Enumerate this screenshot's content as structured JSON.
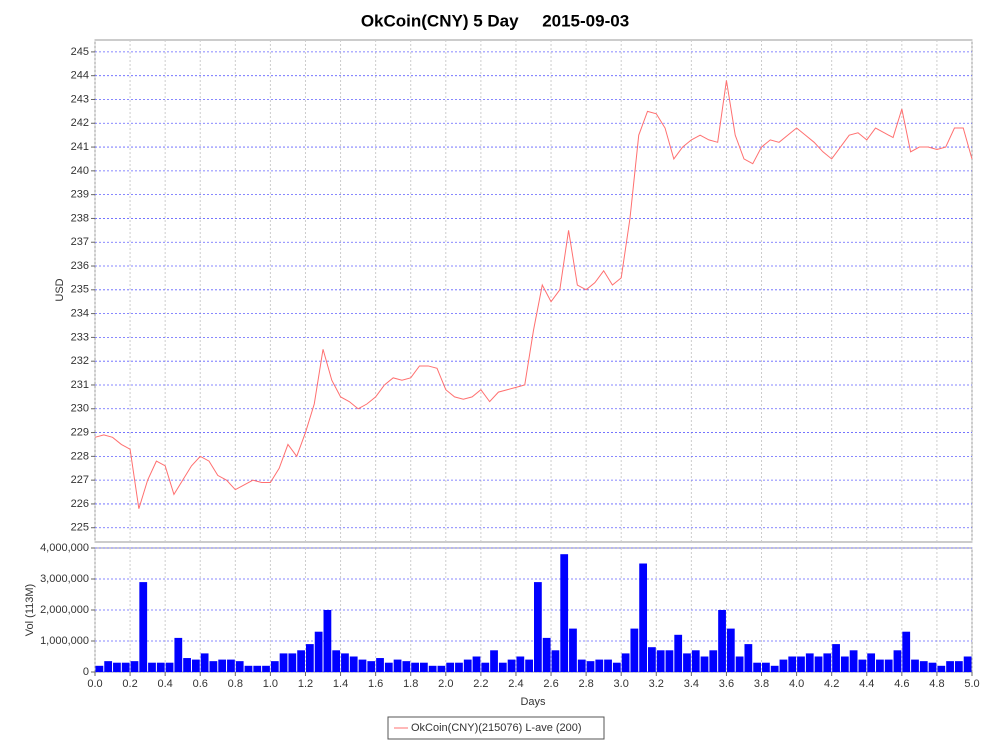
{
  "chart_data": [
    {
      "type": "line",
      "title": "OkCoin(CNY) 5 Day     2015-09-03",
      "ylabel": "USD",
      "x": [
        0,
        0.05,
        0.1,
        0.15,
        0.2,
        0.25,
        0.3,
        0.35,
        0.4,
        0.45,
        0.5,
        0.55,
        0.6,
        0.65,
        0.7,
        0.75,
        0.8,
        0.85,
        0.9,
        0.95,
        1,
        1.05,
        1.1,
        1.15,
        1.2,
        1.25,
        1.3,
        1.35,
        1.4,
        1.45,
        1.5,
        1.55,
        1.6,
        1.65,
        1.7,
        1.75,
        1.8,
        1.85,
        1.9,
        1.95,
        2,
        2.05,
        2.1,
        2.15,
        2.2,
        2.25,
        2.3,
        2.35,
        2.4,
        2.45,
        2.5,
        2.55,
        2.6,
        2.65,
        2.7,
        2.75,
        2.8,
        2.85,
        2.9,
        2.95,
        3,
        3.05,
        3.1,
        3.15,
        3.2,
        3.25,
        3.3,
        3.35,
        3.4,
        3.45,
        3.5,
        3.55,
        3.6,
        3.65,
        3.7,
        3.75,
        3.8,
        3.85,
        3.9,
        3.95,
        4,
        4.05,
        4.1,
        4.15,
        4.2,
        4.25,
        4.3,
        4.35,
        4.4,
        4.45,
        4.5,
        4.55,
        4.6,
        4.65,
        4.7,
        4.75,
        4.8,
        4.85,
        4.9,
        4.95,
        5
      ],
      "series": [
        {
          "name": "OkCoin(CNY)(215076) L-ave (200)",
          "color": "#ff7070",
          "values": [
            228.8,
            228.9,
            228.8,
            228.5,
            228.3,
            225.8,
            227.0,
            227.8,
            227.6,
            226.4,
            227.0,
            227.6,
            228.0,
            227.8,
            227.2,
            227.0,
            226.6,
            226.8,
            227.0,
            226.9,
            226.9,
            227.5,
            228.5,
            228.0,
            229.0,
            230.2,
            232.5,
            231.2,
            230.5,
            230.3,
            230.0,
            230.2,
            230.5,
            231.0,
            231.3,
            231.2,
            231.3,
            231.8,
            231.8,
            231.7,
            230.8,
            230.5,
            230.4,
            230.5,
            230.8,
            230.3,
            230.7,
            230.8,
            230.9,
            231.0,
            233.3,
            235.2,
            234.5,
            235.0,
            237.5,
            235.2,
            235.0,
            235.3,
            235.8,
            235.2,
            235.5,
            238.0,
            241.5,
            242.5,
            242.4,
            241.8,
            240.5,
            241.0,
            241.3,
            241.5,
            241.3,
            241.2,
            243.8,
            241.5,
            240.5,
            240.3,
            241.0,
            241.3,
            241.2,
            241.5,
            241.8,
            241.5,
            241.2,
            240.8,
            240.5,
            241.0,
            241.5,
            241.6,
            241.3,
            241.8,
            241.6,
            241.4,
            242.6,
            240.8,
            241.0,
            241.0,
            240.9,
            241.0,
            241.8,
            241.8,
            240.5
          ]
        }
      ],
      "xlim": [
        0,
        5
      ],
      "ylim": [
        224.4,
        245.5
      ],
      "yticks": [
        225,
        226,
        227,
        228,
        229,
        230,
        231,
        232,
        233,
        234,
        235,
        236,
        237,
        238,
        239,
        240,
        241,
        242,
        243,
        244,
        245
      ],
      "grid": true,
      "legend": "bottom"
    },
    {
      "type": "bar",
      "xlabel": "Days",
      "ylabel": "Vol (113M)",
      "color": "#0000ff",
      "x": [
        0,
        0.05,
        0.1,
        0.15,
        0.2,
        0.25,
        0.3,
        0.35,
        0.4,
        0.45,
        0.5,
        0.55,
        0.6,
        0.65,
        0.7,
        0.75,
        0.8,
        0.85,
        0.9,
        0.95,
        1,
        1.05,
        1.1,
        1.15,
        1.2,
        1.25,
        1.3,
        1.35,
        1.4,
        1.45,
        1.5,
        1.55,
        1.6,
        1.65,
        1.7,
        1.75,
        1.8,
        1.85,
        1.9,
        1.95,
        2,
        2.05,
        2.1,
        2.15,
        2.2,
        2.25,
        2.3,
        2.35,
        2.4,
        2.45,
        2.5,
        2.55,
        2.6,
        2.65,
        2.7,
        2.75,
        2.8,
        2.85,
        2.9,
        2.95,
        3,
        3.05,
        3.1,
        3.15,
        3.2,
        3.25,
        3.3,
        3.35,
        3.4,
        3.45,
        3.5,
        3.55,
        3.6,
        3.65,
        3.7,
        3.75,
        3.8,
        3.85,
        3.9,
        3.95,
        4,
        4.05,
        4.1,
        4.15,
        4.2,
        4.25,
        4.3,
        4.35,
        4.4,
        4.45,
        4.5,
        4.55,
        4.6,
        4.65,
        4.7,
        4.75,
        4.8,
        4.85,
        4.9,
        4.95
      ],
      "values": [
        200000,
        350000,
        300000,
        300000,
        350000,
        2900000,
        300000,
        300000,
        300000,
        1100000,
        450000,
        400000,
        600000,
        350000,
        400000,
        400000,
        350000,
        200000,
        200000,
        200000,
        350000,
        600000,
        600000,
        700000,
        900000,
        1300000,
        2000000,
        700000,
        600000,
        500000,
        400000,
        350000,
        450000,
        300000,
        400000,
        350000,
        300000,
        300000,
        200000,
        200000,
        300000,
        300000,
        400000,
        500000,
        300000,
        700000,
        300000,
        400000,
        500000,
        400000,
        2900000,
        1100000,
        700000,
        3800000,
        1400000,
        400000,
        350000,
        400000,
        400000,
        300000,
        600000,
        1400000,
        3500000,
        800000,
        700000,
        700000,
        1200000,
        600000,
        700000,
        500000,
        700000,
        2000000,
        1400000,
        500000,
        900000,
        300000,
        300000,
        200000,
        400000,
        500000,
        500000,
        600000,
        500000,
        600000,
        900000,
        500000,
        700000,
        400000,
        600000,
        400000,
        400000,
        700000,
        1300000,
        400000,
        350000,
        300000,
        200000,
        350000,
        350000,
        500000
      ],
      "xlim": [
        0,
        5
      ],
      "ylim": [
        0,
        4000000
      ],
      "xticks": [
        {
          "value": 0,
          "label": "0.0"
        },
        0.2,
        0.4,
        0.6,
        0.8,
        {
          "value": 1,
          "label": "1.0"
        },
        1.2,
        1.4,
        1.6,
        1.8,
        {
          "value": 2,
          "label": "2.0"
        },
        2.2,
        2.4,
        2.6,
        2.8,
        {
          "value": 3,
          "label": "3.0"
        },
        3.2,
        3.4,
        3.6,
        3.8,
        {
          "value": 4,
          "label": "4.0"
        },
        4.2,
        4.4,
        4.6,
        4.8,
        {
          "value": 5,
          "label": "5.0"
        }
      ],
      "yticks": [
        0,
        {
          "value": 1000000,
          "label": "1,000,000"
        },
        {
          "value": 2000000,
          "label": "2,000,000"
        },
        {
          "value": 3000000,
          "label": "3,000,000"
        },
        {
          "value": 4000000,
          "label": "4,000,000"
        }
      ],
      "grid": true
    }
  ]
}
